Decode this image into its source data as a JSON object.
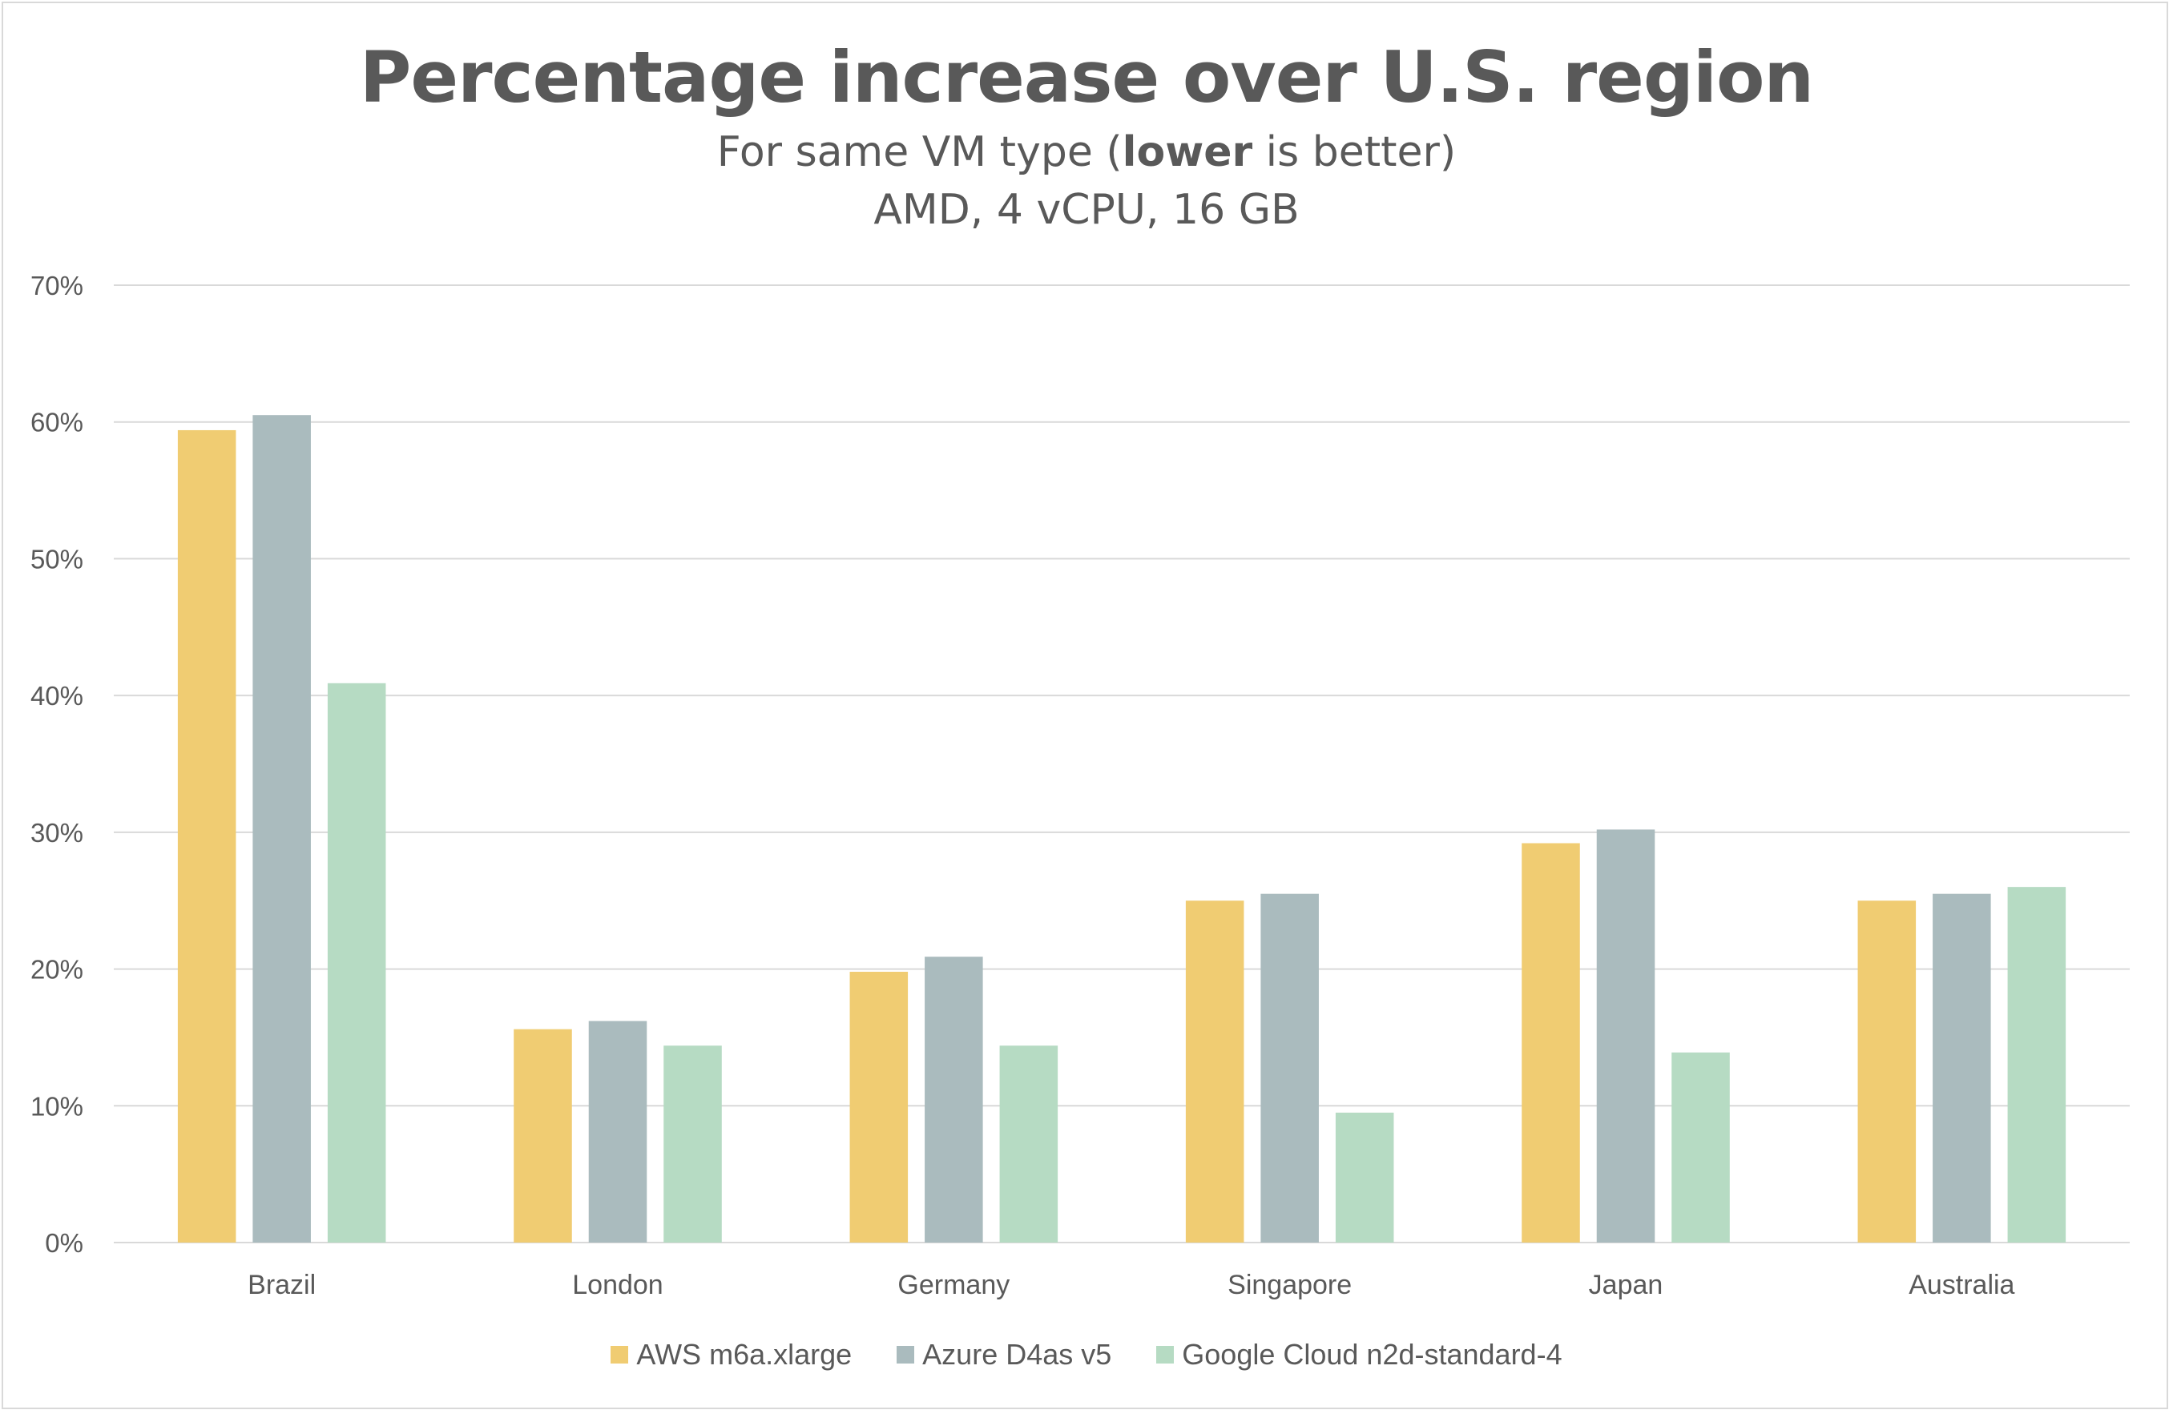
{
  "chart_data": {
    "type": "bar",
    "title": "Percentage increase over U.S. region",
    "subtitle_parts": [
      "For same VM type (",
      "lower",
      " is better)"
    ],
    "subtitle2": "AMD, 4 vCPU, 16 GB",
    "categories": [
      "Brazil",
      "London",
      "Germany",
      "Singapore",
      "Japan",
      "Australia"
    ],
    "series": [
      {
        "name": "AWS m6a.xlarge",
        "color": "#f0cc72",
        "values": [
          59.4,
          15.6,
          19.8,
          25.0,
          29.2,
          25.0
        ]
      },
      {
        "name": "Azure D4as v5",
        "color": "#aabbbe",
        "values": [
          60.5,
          16.2,
          20.9,
          25.5,
          30.2,
          25.5
        ]
      },
      {
        "name": "Google Cloud n2d-standard-4",
        "color": "#b6dbc3",
        "values": [
          40.9,
          14.4,
          14.4,
          9.5,
          13.9,
          26.0
        ]
      }
    ],
    "ylim": [
      0,
      70
    ],
    "yticks": [
      "0%",
      "10%",
      "20%",
      "30%",
      "40%",
      "50%",
      "60%",
      "70%"
    ],
    "grid": true,
    "legend": "bottom"
  }
}
